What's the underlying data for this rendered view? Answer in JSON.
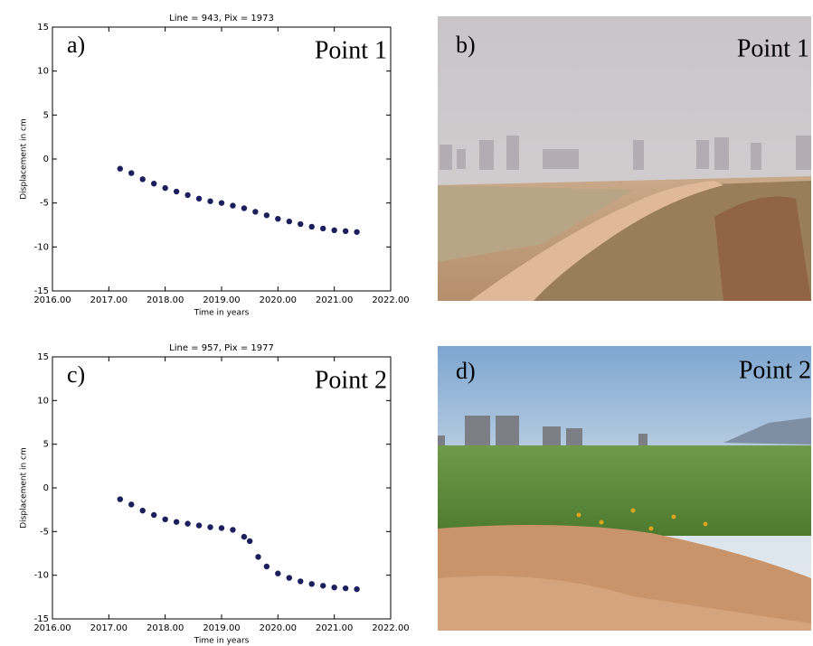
{
  "chart_data": [
    {
      "type": "scatter",
      "title": "Line = 943, Pix = 1973",
      "panel": "a)",
      "annotation": "Point 1",
      "xlabel": "Time in years",
      "ylabel": "Displacement in cm",
      "xlim": [
        2016,
        2022
      ],
      "ylim": [
        -15,
        15
      ],
      "xticks": [
        {
          "value": 2016,
          "label": "2016.00"
        },
        {
          "value": 2017,
          "label": "2017.00"
        },
        {
          "value": 2018,
          "label": "2018.00"
        },
        {
          "value": 2019,
          "label": "2019.00"
        },
        {
          "value": 2020,
          "label": "2020.00"
        },
        {
          "value": 2021,
          "label": "2021.00"
        },
        {
          "value": 2022,
          "label": "2022.00"
        }
      ],
      "yticks": [
        -15,
        -10,
        -5,
        0,
        5,
        10,
        15
      ],
      "color": "#1b1f5c",
      "x": [
        2017.2,
        2017.4,
        2017.6,
        2017.8,
        2018.0,
        2018.2,
        2018.4,
        2018.6,
        2018.8,
        2019.0,
        2019.2,
        2019.4,
        2019.6,
        2019.8,
        2020.0,
        2020.2,
        2020.4,
        2020.6,
        2020.8,
        2021.0,
        2021.2,
        2021.4
      ],
      "values": [
        -1.1,
        -1.6,
        -2.3,
        -2.8,
        -3.3,
        -3.7,
        -4.1,
        -4.5,
        -4.8,
        -5.0,
        -5.3,
        -5.6,
        -6.0,
        -6.4,
        -6.8,
        -7.1,
        -7.4,
        -7.7,
        -7.9,
        -8.1,
        -8.2,
        -8.3
      ]
    },
    {
      "type": "scatter",
      "title": "Line = 957, Pix = 1977",
      "panel": "c)",
      "annotation": "Point 2",
      "xlabel": "Time in years",
      "ylabel": "Displacement in cm",
      "xlim": [
        2016,
        2022
      ],
      "ylim": [
        -15,
        15
      ],
      "xticks": [
        {
          "value": 2016,
          "label": "2016.00"
        },
        {
          "value": 2017,
          "label": "2017.00"
        },
        {
          "value": 2018,
          "label": "2018.00"
        },
        {
          "value": 2019,
          "label": "2019.00"
        },
        {
          "value": 2020,
          "label": "2020.00"
        },
        {
          "value": 2021,
          "label": "2021.00"
        },
        {
          "value": 2022,
          "label": "2022.00"
        }
      ],
      "yticks": [
        -15,
        -10,
        -5,
        0,
        5,
        10,
        15
      ],
      "color": "#1b1f5c",
      "x": [
        2017.2,
        2017.4,
        2017.6,
        2017.8,
        2018.0,
        2018.2,
        2018.4,
        2018.6,
        2018.8,
        2019.0,
        2019.2,
        2019.4,
        2019.5,
        2019.65,
        2019.8,
        2020.0,
        2020.2,
        2020.4,
        2020.6,
        2020.8,
        2021.0,
        2021.2,
        2021.4
      ],
      "values": [
        -1.3,
        -1.9,
        -2.6,
        -3.1,
        -3.6,
        -3.9,
        -4.1,
        -4.3,
        -4.5,
        -4.6,
        -4.8,
        -5.6,
        -6.1,
        -7.9,
        -9.0,
        -9.8,
        -10.3,
        -10.7,
        -11.0,
        -11.2,
        -11.4,
        -11.5,
        -11.6
      ]
    }
  ],
  "photos": [
    {
      "panel": "b)",
      "label": "Point 1"
    },
    {
      "panel": "d)",
      "label": "Point 2"
    }
  ]
}
